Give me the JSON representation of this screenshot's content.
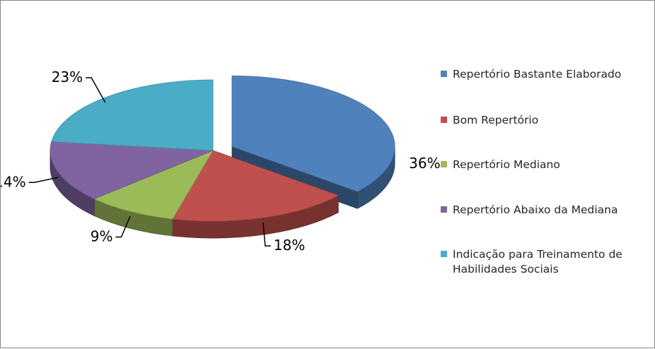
{
  "chart_data": {
    "type": "pie",
    "title": "",
    "categories": [
      "Repertório Bastante Elaborado",
      "Bom Repertório",
      "Repertório Mediano",
      "Repertório Abaixo da Mediana",
      "Indicação para Treinamento de Habilidades Sociais"
    ],
    "values": [
      36,
      18,
      9,
      14,
      23
    ],
    "labels": [
      "36%",
      "18%",
      "9%",
      "14%",
      "23%"
    ],
    "colors": [
      "#4F81BD",
      "#C0504D",
      "#9BBB59",
      "#8064A2",
      "#4BACC6"
    ],
    "legend_position": "right",
    "style": "3d-exploded"
  }
}
